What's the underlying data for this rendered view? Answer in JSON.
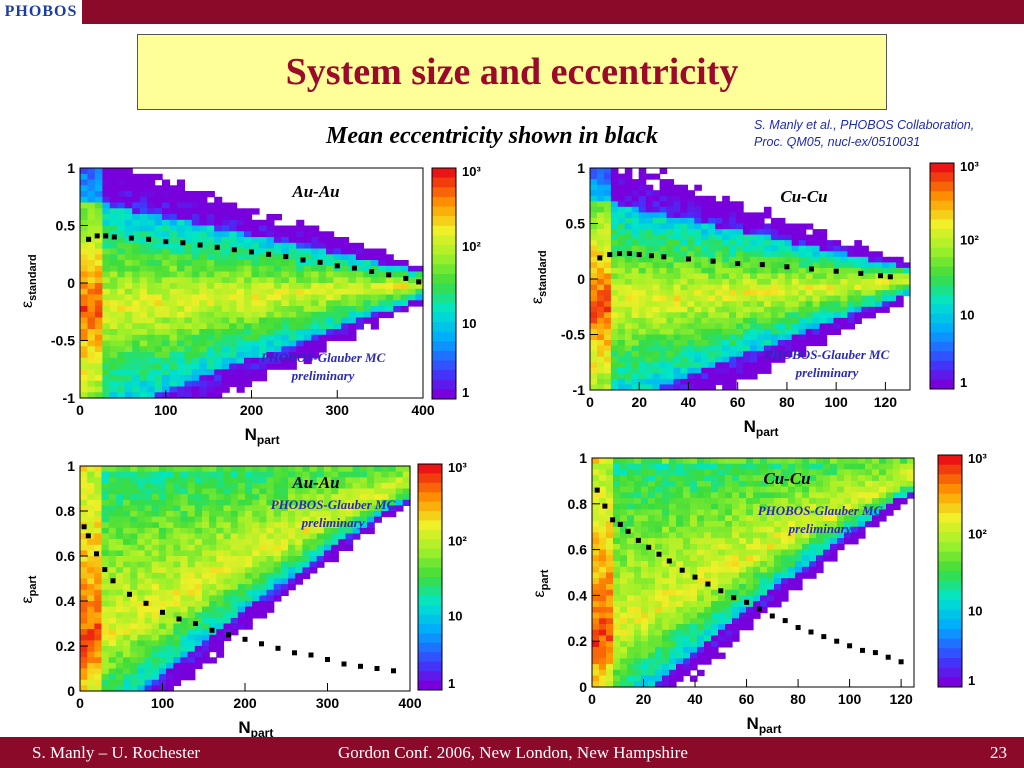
{
  "header": {
    "logo_text": "PHOBOS"
  },
  "title": "System size and eccentricity",
  "subtitle": "Mean eccentricity shown in black",
  "reference": {
    "line1": "S. Manly et al., PHOBOS Collaboration,",
    "line2": "Proc. QM05, nucl-ex/0510031"
  },
  "footer": {
    "left": "S. Manly – U. Rochester",
    "center": "Gordon Conf. 2006, New London, New Hampshire",
    "page": "23"
  },
  "colorbar": {
    "labels": [
      "10³",
      "10²",
      "10",
      "1"
    ]
  },
  "chart_data": [
    {
      "type": "heatmap",
      "system": "Au-Au",
      "xlabel": "N_part",
      "ylabel": "ε_standard",
      "xlim": [
        0,
        400
      ],
      "ylim": [
        -1,
        1
      ],
      "xticks": [
        0,
        100,
        200,
        300,
        400
      ],
      "xtick_labels": [
        "0",
        "100",
        "200",
        "300",
        "400"
      ],
      "yticks": [
        -1,
        -0.5,
        0,
        0.5,
        1
      ],
      "ytick_labels": [
        "-1",
        "-0.5",
        "0",
        "0.5",
        "1"
      ],
      "annotation": "PHOBOS-Glauber MC",
      "annotation2": "preliminary",
      "mean_x": [
        10,
        20,
        30,
        40,
        60,
        80,
        100,
        120,
        140,
        160,
        180,
        200,
        220,
        240,
        260,
        280,
        300,
        320,
        340,
        360,
        380,
        395
      ],
      "mean_y": [
        0.38,
        0.41,
        0.41,
        0.4,
        0.39,
        0.38,
        0.36,
        0.35,
        0.33,
        0.31,
        0.29,
        0.27,
        0.25,
        0.23,
        0.2,
        0.18,
        0.15,
        0.13,
        0.1,
        0.07,
        0.04,
        0.01
      ]
    },
    {
      "type": "heatmap",
      "system": "Cu-Cu",
      "xlabel": "N_part",
      "ylabel": "ε_standard",
      "xlim": [
        0,
        130
      ],
      "ylim": [
        -1,
        1
      ],
      "xticks": [
        0,
        20,
        40,
        60,
        80,
        100,
        120
      ],
      "xtick_labels": [
        "0",
        "20",
        "40",
        "60",
        "80",
        "100",
        "120"
      ],
      "yticks": [
        -1,
        -0.5,
        0,
        0.5,
        1
      ],
      "ytick_labels": [
        "-1",
        "-0.5",
        "0",
        "0.5",
        "1"
      ],
      "annotation": "PHOBOS-Glauber MC",
      "annotation2": "preliminary",
      "mean_x": [
        4,
        8,
        12,
        16,
        20,
        25,
        30,
        40,
        50,
        60,
        70,
        80,
        90,
        100,
        110,
        118,
        122
      ],
      "mean_y": [
        0.19,
        0.22,
        0.23,
        0.23,
        0.22,
        0.21,
        0.2,
        0.18,
        0.16,
        0.14,
        0.13,
        0.11,
        0.09,
        0.07,
        0.05,
        0.03,
        0.02
      ]
    },
    {
      "type": "heatmap",
      "system": "Au-Au",
      "xlabel": "N_part",
      "ylabel": "ε_part",
      "xlim": [
        0,
        400
      ],
      "ylim": [
        0,
        1
      ],
      "xticks": [
        0,
        100,
        200,
        300,
        400
      ],
      "xtick_labels": [
        "0",
        "100",
        "200",
        "300",
        "400"
      ],
      "yticks": [
        0,
        0.2,
        0.4,
        0.6,
        0.8,
        1
      ],
      "ytick_labels": [
        "0",
        "0.2",
        "0.4",
        "0.6",
        "0.8",
        "1"
      ],
      "annotation": "PHOBOS-Glauber MC",
      "annotation2": "preliminary",
      "mean_x": [
        5,
        10,
        20,
        30,
        40,
        60,
        80,
        100,
        120,
        140,
        160,
        180,
        200,
        220,
        240,
        260,
        280,
        300,
        320,
        340,
        360,
        380
      ],
      "mean_y": [
        0.73,
        0.69,
        0.61,
        0.54,
        0.49,
        0.43,
        0.39,
        0.35,
        0.32,
        0.3,
        0.27,
        0.25,
        0.23,
        0.21,
        0.19,
        0.17,
        0.16,
        0.14,
        0.12,
        0.11,
        0.1,
        0.09
      ]
    },
    {
      "type": "heatmap",
      "system": "Cu-Cu",
      "xlabel": "N_part",
      "ylabel": "ε_part",
      "xlim": [
        0,
        125
      ],
      "ylim": [
        0,
        1
      ],
      "xticks": [
        0,
        20,
        40,
        60,
        80,
        100,
        120
      ],
      "xtick_labels": [
        "0",
        "20",
        "40",
        "60",
        "80",
        "100",
        "120"
      ],
      "yticks": [
        0,
        0.2,
        0.4,
        0.6,
        0.8,
        1
      ],
      "ytick_labels": [
        "0",
        "0.2",
        "0.4",
        "0.6",
        "0.8",
        "1"
      ],
      "annotation": "PHOBOS-Glauber MC",
      "annotation2": "preliminary",
      "mean_x": [
        2,
        5,
        8,
        11,
        14,
        18,
        22,
        26,
        30,
        35,
        40,
        45,
        50,
        55,
        60,
        65,
        70,
        75,
        80,
        85,
        90,
        95,
        100,
        105,
        110,
        115,
        120
      ],
      "mean_y": [
        0.86,
        0.79,
        0.73,
        0.71,
        0.68,
        0.64,
        0.61,
        0.58,
        0.55,
        0.51,
        0.48,
        0.45,
        0.42,
        0.39,
        0.37,
        0.34,
        0.31,
        0.29,
        0.26,
        0.24,
        0.22,
        0.2,
        0.18,
        0.16,
        0.15,
        0.13,
        0.11
      ]
    }
  ]
}
